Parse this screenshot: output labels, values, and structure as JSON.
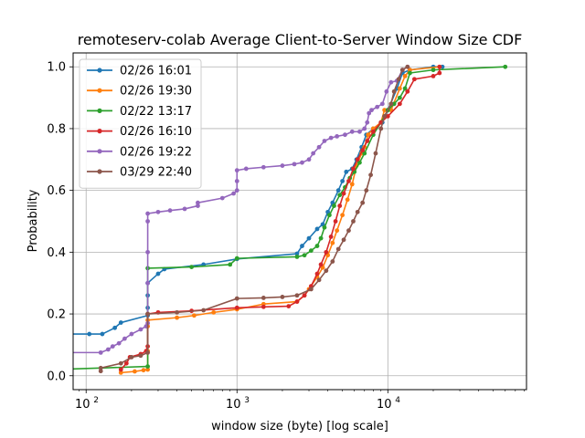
{
  "chart_data": {
    "type": "line",
    "title": "remoteserv-colab Average Client-to-Server Window Size CDF",
    "xlabel": "window size (byte) [log scale]",
    "ylabel": "Probability",
    "x_scale": "log",
    "xlim": [
      82,
      83000
    ],
    "ylim": [
      -0.045,
      1.045
    ],
    "grid": true,
    "legend_position": "upper-left",
    "x_ticks": [
      {
        "value": 100,
        "base": "10",
        "exp": "2"
      },
      {
        "value": 1000,
        "base": "10",
        "exp": "3"
      },
      {
        "value": 10000,
        "base": "10",
        "exp": "4"
      }
    ],
    "y_ticks": [
      {
        "value": 0.0,
        "label": "0.0"
      },
      {
        "value": 0.2,
        "label": "0.2"
      },
      {
        "value": 0.4,
        "label": "0.4"
      },
      {
        "value": 0.6,
        "label": "0.6"
      },
      {
        "value": 0.8,
        "label": "0.8"
      },
      {
        "value": 1.0,
        "label": "1.0"
      }
    ],
    "series": [
      {
        "name": "02/26 16:01",
        "color": "#1f77b4",
        "points": [
          [
            60,
            0.135
          ],
          [
            105,
            0.135
          ],
          [
            128,
            0.135
          ],
          [
            155,
            0.155
          ],
          [
            170,
            0.172
          ],
          [
            256,
            0.195
          ],
          [
            256,
            0.22
          ],
          [
            256,
            0.26
          ],
          [
            256,
            0.3
          ],
          [
            300,
            0.33
          ],
          [
            330,
            0.345
          ],
          [
            600,
            0.36
          ],
          [
            1000,
            0.378
          ],
          [
            2500,
            0.395
          ],
          [
            2700,
            0.42
          ],
          [
            3000,
            0.445
          ],
          [
            3400,
            0.475
          ],
          [
            3700,
            0.49
          ],
          [
            4000,
            0.53
          ],
          [
            4300,
            0.56
          ],
          [
            4700,
            0.6
          ],
          [
            5000,
            0.63
          ],
          [
            5300,
            0.66
          ],
          [
            5800,
            0.67
          ],
          [
            6200,
            0.7
          ],
          [
            6700,
            0.74
          ],
          [
            7200,
            0.78
          ],
          [
            8000,
            0.8
          ],
          [
            9200,
            0.82
          ],
          [
            10000,
            0.86
          ],
          [
            11500,
            0.93
          ],
          [
            12500,
            0.98
          ],
          [
            14000,
            0.99
          ],
          [
            20000,
            1.0
          ],
          [
            23000,
            1.0
          ]
        ]
      },
      {
        "name": "02/26 19:30",
        "color": "#ff7f0e",
        "points": [
          [
            170,
            0.01
          ],
          [
            210,
            0.014
          ],
          [
            240,
            0.018
          ],
          [
            256,
            0.02
          ],
          [
            256,
            0.08
          ],
          [
            256,
            0.16
          ],
          [
            256,
            0.18
          ],
          [
            400,
            0.188
          ],
          [
            520,
            0.195
          ],
          [
            700,
            0.205
          ],
          [
            1000,
            0.215
          ],
          [
            1500,
            0.232
          ],
          [
            2500,
            0.24
          ],
          [
            2800,
            0.26
          ],
          [
            3000,
            0.28
          ],
          [
            3400,
            0.32
          ],
          [
            3700,
            0.35
          ],
          [
            4000,
            0.39
          ],
          [
            4300,
            0.43
          ],
          [
            4600,
            0.47
          ],
          [
            5000,
            0.52
          ],
          [
            5400,
            0.57
          ],
          [
            5800,
            0.62
          ],
          [
            6200,
            0.68
          ],
          [
            6700,
            0.72
          ],
          [
            7000,
            0.74
          ],
          [
            7400,
            0.78
          ],
          [
            8000,
            0.8
          ],
          [
            9000,
            0.82
          ],
          [
            9500,
            0.86
          ],
          [
            10500,
            0.86
          ],
          [
            12000,
            0.93
          ],
          [
            13000,
            0.97
          ],
          [
            14000,
            0.99
          ],
          [
            22000,
            1.0
          ]
        ]
      },
      {
        "name": "02/22 13:17",
        "color": "#2ca02c",
        "points": [
          [
            60,
            0.02
          ],
          [
            256,
            0.03
          ],
          [
            256,
            0.2
          ],
          [
            256,
            0.348
          ],
          [
            500,
            0.352
          ],
          [
            900,
            0.36
          ],
          [
            1000,
            0.38
          ],
          [
            2500,
            0.385
          ],
          [
            2800,
            0.39
          ],
          [
            3100,
            0.405
          ],
          [
            3400,
            0.42
          ],
          [
            3600,
            0.445
          ],
          [
            3800,
            0.48
          ],
          [
            4100,
            0.52
          ],
          [
            4400,
            0.55
          ],
          [
            4800,
            0.585
          ],
          [
            5200,
            0.61
          ],
          [
            5600,
            0.64
          ],
          [
            6000,
            0.66
          ],
          [
            6500,
            0.69
          ],
          [
            7000,
            0.72
          ],
          [
            8000,
            0.78
          ],
          [
            9000,
            0.82
          ],
          [
            9500,
            0.84
          ],
          [
            10000,
            0.86
          ],
          [
            11000,
            0.88
          ],
          [
            12000,
            0.9
          ],
          [
            13000,
            0.93
          ],
          [
            14000,
            0.98
          ],
          [
            20000,
            0.99
          ],
          [
            60000,
            1.0
          ]
        ]
      },
      {
        "name": "02/26 16:10",
        "color": "#d62728",
        "points": [
          [
            170,
            0.02
          ],
          [
            185,
            0.04
          ],
          [
            195,
            0.06
          ],
          [
            230,
            0.07
          ],
          [
            250,
            0.08
          ],
          [
            256,
            0.095
          ],
          [
            256,
            0.2
          ],
          [
            300,
            0.205
          ],
          [
            500,
            0.21
          ],
          [
            1000,
            0.22
          ],
          [
            1500,
            0.223
          ],
          [
            2200,
            0.225
          ],
          [
            2500,
            0.24
          ],
          [
            2800,
            0.26
          ],
          [
            3100,
            0.29
          ],
          [
            3400,
            0.33
          ],
          [
            3600,
            0.36
          ],
          [
            3900,
            0.4
          ],
          [
            4200,
            0.45
          ],
          [
            4500,
            0.5
          ],
          [
            4800,
            0.55
          ],
          [
            5100,
            0.59
          ],
          [
            5500,
            0.63
          ],
          [
            5900,
            0.67
          ],
          [
            6300,
            0.7
          ],
          [
            6800,
            0.73
          ],
          [
            7300,
            0.76
          ],
          [
            8000,
            0.79
          ],
          [
            9000,
            0.82
          ],
          [
            10000,
            0.84
          ],
          [
            12000,
            0.88
          ],
          [
            13500,
            0.92
          ],
          [
            15000,
            0.96
          ],
          [
            20000,
            0.97
          ],
          [
            22000,
            0.98
          ],
          [
            22000,
            1.0
          ]
        ]
      },
      {
        "name": "02/26 19:22",
        "color": "#9467bd",
        "points": [
          [
            60,
            0.075
          ],
          [
            125,
            0.075
          ],
          [
            140,
            0.085
          ],
          [
            150,
            0.095
          ],
          [
            165,
            0.105
          ],
          [
            180,
            0.12
          ],
          [
            200,
            0.135
          ],
          [
            230,
            0.15
          ],
          [
            250,
            0.16
          ],
          [
            256,
            0.17
          ],
          [
            256,
            0.3
          ],
          [
            256,
            0.4
          ],
          [
            256,
            0.5
          ],
          [
            256,
            0.525
          ],
          [
            300,
            0.53
          ],
          [
            360,
            0.535
          ],
          [
            450,
            0.54
          ],
          [
            550,
            0.55
          ],
          [
            550,
            0.56
          ],
          [
            800,
            0.575
          ],
          [
            950,
            0.59
          ],
          [
            1000,
            0.6
          ],
          [
            1000,
            0.63
          ],
          [
            1000,
            0.665
          ],
          [
            1150,
            0.67
          ],
          [
            1500,
            0.675
          ],
          [
            2000,
            0.68
          ],
          [
            2400,
            0.685
          ],
          [
            2700,
            0.69
          ],
          [
            3000,
            0.7
          ],
          [
            3200,
            0.72
          ],
          [
            3500,
            0.74
          ],
          [
            3800,
            0.76
          ],
          [
            4200,
            0.77
          ],
          [
            4600,
            0.775
          ],
          [
            5200,
            0.78
          ],
          [
            5800,
            0.79
          ],
          [
            6500,
            0.79
          ],
          [
            7000,
            0.8
          ],
          [
            7300,
            0.82
          ],
          [
            7500,
            0.85
          ],
          [
            7800,
            0.86
          ],
          [
            8500,
            0.87
          ],
          [
            9200,
            0.88
          ],
          [
            9800,
            0.92
          ],
          [
            10500,
            0.95
          ],
          [
            11500,
            0.955
          ],
          [
            12500,
            0.99
          ],
          [
            13500,
            1.0
          ]
        ]
      },
      {
        "name": "03/29 22:40",
        "color": "#8c564b",
        "points": [
          [
            125,
            0.015
          ],
          [
            125,
            0.025
          ],
          [
            170,
            0.04
          ],
          [
            200,
            0.06
          ],
          [
            230,
            0.065
          ],
          [
            256,
            0.075
          ],
          [
            256,
            0.2
          ],
          [
            400,
            0.205
          ],
          [
            600,
            0.212
          ],
          [
            1000,
            0.25
          ],
          [
            1500,
            0.252
          ],
          [
            2000,
            0.255
          ],
          [
            2500,
            0.26
          ],
          [
            3100,
            0.28
          ],
          [
            3500,
            0.31
          ],
          [
            3900,
            0.34
          ],
          [
            4300,
            0.37
          ],
          [
            4700,
            0.41
          ],
          [
            5100,
            0.44
          ],
          [
            5500,
            0.47
          ],
          [
            5900,
            0.5
          ],
          [
            6300,
            0.53
          ],
          [
            6800,
            0.56
          ],
          [
            7200,
            0.6
          ],
          [
            7700,
            0.65
          ],
          [
            8300,
            0.72
          ],
          [
            9000,
            0.8
          ],
          [
            9500,
            0.84
          ],
          [
            10500,
            0.88
          ],
          [
            11000,
            0.92
          ],
          [
            11800,
            0.96
          ],
          [
            12500,
            0.99
          ],
          [
            13500,
            1.0
          ]
        ]
      }
    ]
  }
}
